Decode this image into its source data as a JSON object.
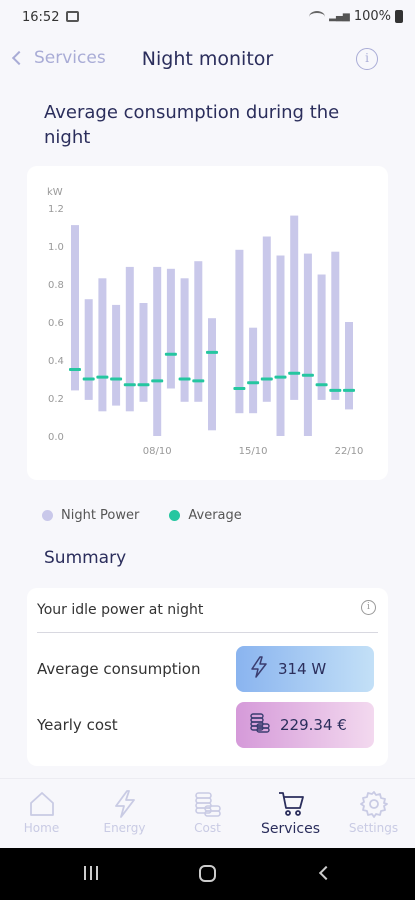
{
  "status_bar": {
    "time": "16:52",
    "battery": "100%"
  },
  "header": {
    "back_label": "Services",
    "title": "Night monitor"
  },
  "chart_heading": "Average consumption during the night",
  "chart_data": {
    "type": "bar",
    "ylabel": "kW",
    "ylim": [
      0,
      1.2
    ],
    "y_ticks": [
      "0.0",
      "0.2",
      "0.4",
      "0.6",
      "0.8",
      "1.0",
      "1.2"
    ],
    "x_tick_labels": [
      "08/10",
      "15/10",
      "22/10"
    ],
    "series": [
      {
        "name": "Night Power",
        "type": "range_bar",
        "low": [
          0.24,
          0.19,
          0.13,
          0.16,
          0.13,
          0.18,
          0.0,
          0.25,
          0.18,
          0.18,
          0.03,
          null,
          0.12,
          0.12,
          0.18,
          0.0,
          0.19,
          0.0,
          0.19,
          0.19,
          0.14
        ],
        "high": [
          1.11,
          0.72,
          0.83,
          0.69,
          0.89,
          0.7,
          0.89,
          0.88,
          0.83,
          0.92,
          0.62,
          null,
          0.98,
          0.57,
          1.05,
          0.95,
          1.16,
          0.96,
          0.85,
          0.97,
          0.6
        ]
      },
      {
        "name": "Average",
        "type": "marker",
        "values": [
          0.35,
          0.3,
          0.31,
          0.3,
          0.27,
          0.27,
          0.29,
          0.43,
          0.3,
          0.29,
          0.44,
          null,
          0.25,
          0.28,
          0.3,
          0.31,
          0.33,
          0.32,
          0.27,
          0.24,
          0.24
        ]
      }
    ]
  },
  "legend": {
    "night_power": "Night Power",
    "average": "Average"
  },
  "colors": {
    "bar": "#c9c8ea",
    "average": "#25c6a0",
    "accent": "#2b2e5c"
  },
  "summary": {
    "title": "Summary",
    "idle_label": "Your idle power at night",
    "avg_label": "Average consumption",
    "avg_value": "314 W",
    "cost_label": "Yearly cost",
    "cost_value": "229.34 €"
  },
  "nav": {
    "home": "Home",
    "energy": "Energy",
    "cost": "Cost",
    "services": "Services",
    "settings": "Settings"
  }
}
